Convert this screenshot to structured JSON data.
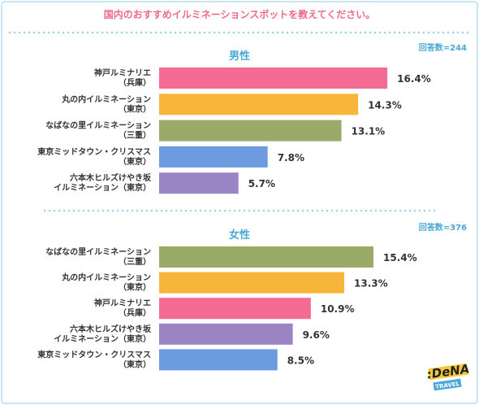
{
  "colors": {
    "title": "#f06a8c",
    "frame": "#c9e6f2",
    "dots": "#9fd3ea",
    "section_title": "#4aa8d8",
    "count": "#4aa8d8",
    "pink": "#f46c93",
    "orange": "#f7b63a",
    "olive": "#9aaa68",
    "blue": "#6d9be0",
    "purple": "#9b84c4",
    "logo_bg": "#f5c93a",
    "logo_travel": "#4aa8d8"
  },
  "title": "国内のおすすめイルミネーションスポットを教えてください。",
  "logo": {
    "brand": ":DeNA",
    "sub": "TRAVEL"
  },
  "chart_data": [
    {
      "type": "bar",
      "orientation": "horizontal",
      "title": "男性",
      "count_label": "回答数=244",
      "categories": [
        [
          "神戸ルミナリエ",
          "（兵庫）"
        ],
        [
          "丸の内イルミネーション",
          "（東京）"
        ],
        [
          "なばなの里イルミネーション",
          "（三重）"
        ],
        [
          "東京ミッドタウン・クリスマス",
          "（東京）"
        ],
        [
          "六本木ヒルズけやき坂",
          "イルミネーション（東京）"
        ]
      ],
      "values": [
        16.4,
        14.3,
        13.1,
        7.8,
        5.7
      ],
      "value_labels": [
        "16.4%",
        "14.3%",
        "13.1%",
        "7.8%",
        "5.7%"
      ],
      "colors": [
        "pink",
        "orange",
        "olive",
        "blue",
        "purple"
      ],
      "xlim": [
        0,
        17.5
      ],
      "grid": false
    },
    {
      "type": "bar",
      "orientation": "horizontal",
      "title": "女性",
      "count_label": "回答数=376",
      "categories": [
        [
          "なばなの里イルミネーション",
          "（三重）"
        ],
        [
          "丸の内イルミネーション",
          "（東京）"
        ],
        [
          "神戸ルミナリエ",
          "（兵庫）"
        ],
        [
          "六本木ヒルズけやき坂",
          "イルミネーション（東京）"
        ],
        [
          "東京ミッドタウン・クリスマス",
          "（東京）"
        ]
      ],
      "values": [
        15.4,
        13.3,
        10.9,
        9.6,
        8.5
      ],
      "value_labels": [
        "15.4%",
        "13.3%",
        "10.9%",
        "9.6%",
        "8.5%"
      ],
      "colors": [
        "olive",
        "orange",
        "pink",
        "purple",
        "blue"
      ],
      "xlim": [
        0,
        17.5
      ],
      "grid": false
    }
  ]
}
